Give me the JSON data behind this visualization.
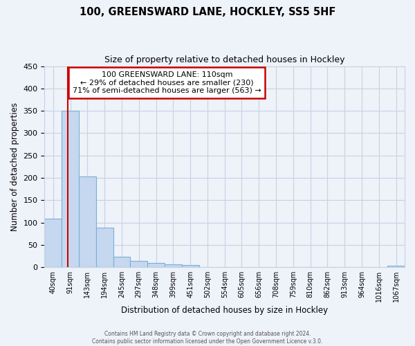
{
  "title": "100, GREENSWARD LANE, HOCKLEY, SS5 5HF",
  "subtitle": "Size of property relative to detached houses in Hockley",
  "xlabel": "Distribution of detached houses by size in Hockley",
  "ylabel": "Number of detached properties",
  "bin_labels": [
    "40sqm",
    "91sqm",
    "143sqm",
    "194sqm",
    "245sqm",
    "297sqm",
    "348sqm",
    "399sqm",
    "451sqm",
    "502sqm",
    "554sqm",
    "605sqm",
    "656sqm",
    "708sqm",
    "759sqm",
    "810sqm",
    "862sqm",
    "913sqm",
    "964sqm",
    "1016sqm",
    "1067sqm"
  ],
  "bar_heights": [
    108,
    350,
    203,
    88,
    23,
    15,
    10,
    7,
    5,
    0,
    0,
    0,
    0,
    0,
    0,
    0,
    0,
    0,
    0,
    0,
    3
  ],
  "bar_color": "#c5d8ef",
  "bar_edge_color": "#7bafd4",
  "ylim": [
    0,
    450
  ],
  "yticks": [
    0,
    50,
    100,
    150,
    200,
    250,
    300,
    350,
    400,
    450
  ],
  "vline_x": 1.35,
  "vline_color": "#cc0000",
  "annotation_title": "100 GREENSWARD LANE: 110sqm",
  "annotation_line2": "← 29% of detached houses are smaller (230)",
  "annotation_line3": "71% of semi-detached houses are larger (563) →",
  "annotation_box_color": "#cc0000",
  "footer_line1": "Contains HM Land Registry data © Crown copyright and database right 2024.",
  "footer_line2": "Contains public sector information licensed under the Open Government Licence v.3.0.",
  "background_color": "#eef2f9",
  "grid_color": "#c5d2e5"
}
